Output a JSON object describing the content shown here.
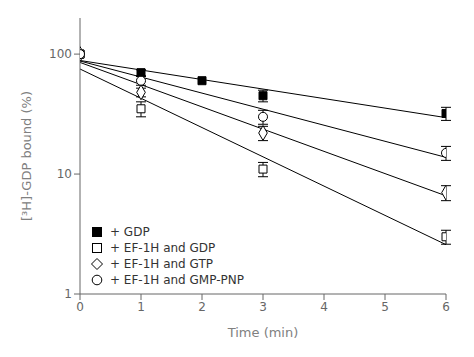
{
  "chart_data": {
    "type": "scatter",
    "title": "",
    "xlabel": "Time (min)",
    "ylabel": "[³H]-GDP bound (%)",
    "log": "y",
    "grid": false,
    "legend": "lower left",
    "xlim": [
      0,
      6
    ],
    "ylim": [
      1,
      200
    ],
    "xticks": [
      0,
      1,
      2,
      3,
      4,
      5,
      6
    ],
    "yticks": [
      1,
      10,
      100
    ],
    "series": [
      {
        "name": "+ GDP",
        "x": [
          0,
          1,
          2,
          3,
          6
        ],
        "values": [
          100,
          70,
          60,
          45,
          32
        ],
        "y_err": [
          0,
          4,
          0,
          5,
          4
        ],
        "marker": "filled_square",
        "color": "black",
        "fit": {
          "x": [
            0,
            6
          ],
          "values": [
            88.5,
            29.54
          ]
        }
      },
      {
        "name": "+ EF-1H and GDP",
        "x": [
          0,
          1,
          3,
          6
        ],
        "values": [
          100,
          35,
          11,
          3.0
        ],
        "y_err": [
          0,
          5,
          1.5,
          0.4
        ],
        "marker": "open_square",
        "color": "black",
        "fit": {
          "x": [
            0,
            6
          ],
          "values": [
            75.13,
            2.579
          ]
        }
      },
      {
        "name": "+ EF-1H and GTP",
        "x": [
          0,
          1,
          3,
          6
        ],
        "values": [
          100,
          48,
          22,
          7
        ],
        "y_err": [
          0,
          4,
          3,
          1
        ],
        "marker": "open_diamond",
        "color": "black",
        "fit": {
          "x": [
            0,
            6
          ],
          "values": [
            85.24,
            6.582
          ]
        }
      },
      {
        "name": "+ EF-1H and GMP-PNP",
        "x": [
          0,
          1,
          3,
          6
        ],
        "values": [
          100,
          60,
          30,
          15
        ],
        "y_err": [
          0,
          5,
          4,
          2
        ],
        "marker": "open_circle",
        "color": "black",
        "fit": {
          "x": [
            0,
            6
          ],
          "values": [
            87.63,
            13.78
          ]
        }
      }
    ]
  }
}
